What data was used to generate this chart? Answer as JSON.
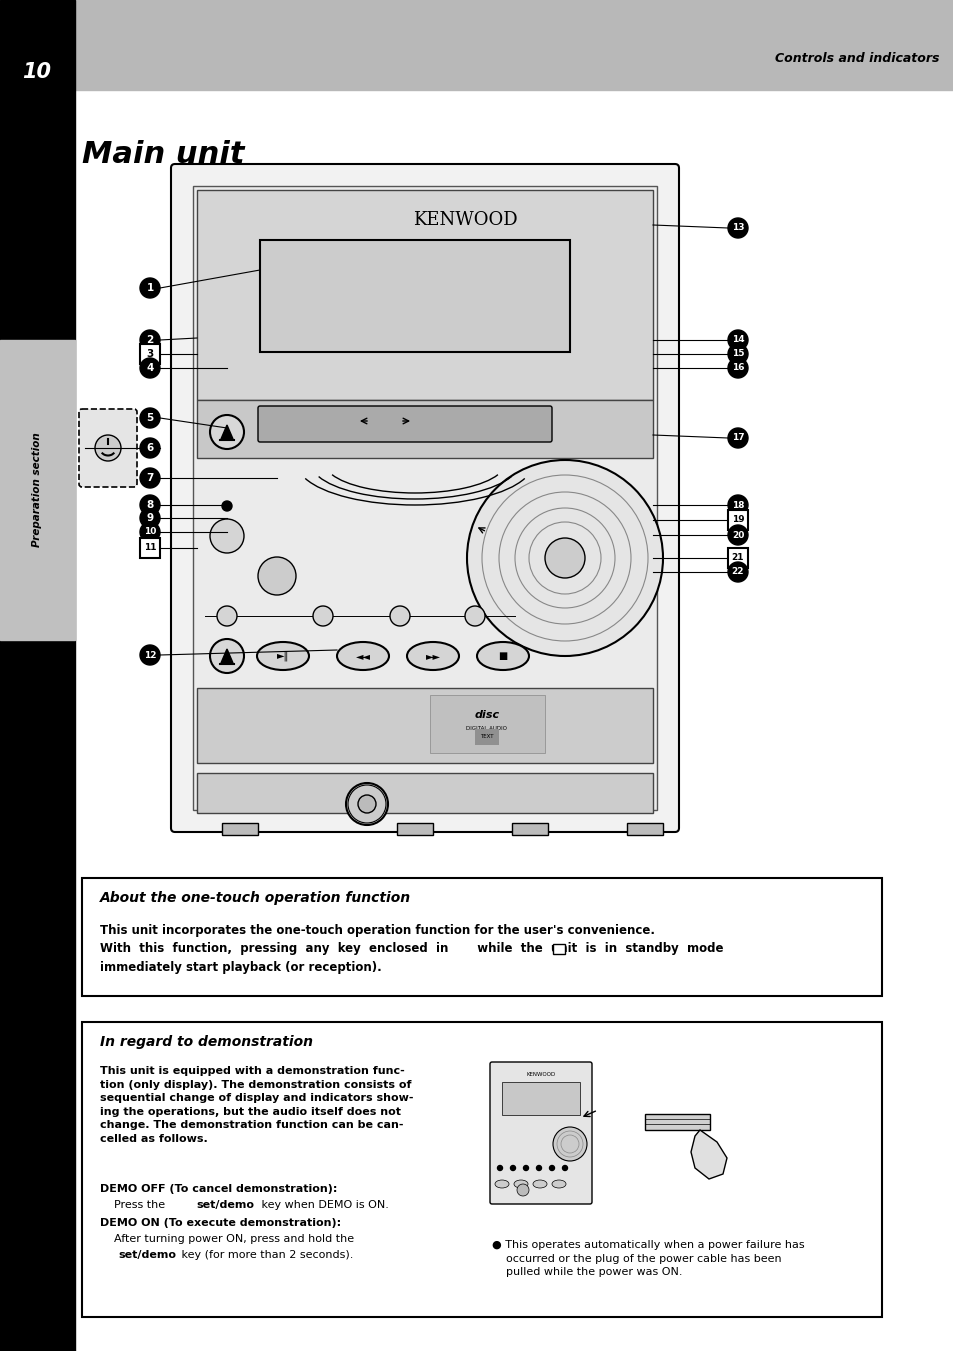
{
  "page_number": "10",
  "header_text": "Controls and indicators",
  "title": "Main unit",
  "bg_color": "#ffffff",
  "header_bg": "#b8b8b8",
  "sidebar_text": "Preparation section",
  "about_title": "About the one-touch operation function",
  "about_body_line1": "This unit incorporates the one-touch operation function for the user's convenience.",
  "about_body_line2": "With  this  function,  pressing  any  key  enclosed  in       while  the  unit  is  in  standby  mode",
  "about_body_line3": "immediately start playback (or reception).",
  "demo_title": "In regard to demonstration",
  "demo_body": "This unit is equipped with a demonstration func-\ntion (only display). The demonstration consists of\nsequential change of display and indicators show-\ning the operations, but the audio itself does not\nchange. The demonstration function can be can-\ncelled as follows.",
  "demo_off_title": "DEMO OFF (To cancel demonstration):",
  "demo_off_body1": "    Press the ",
  "demo_off_bold": "set/demo",
  "demo_off_body2": " key when DEMO is ON.",
  "demo_on_title": "DEMO ON (To execute demonstration):",
  "demo_on_body1": "    After turning power ON, press and hold the",
  "demo_on_bold": "set/demo",
  "demo_on_body2": " key (for more than 2 seconds).",
  "demo_bullet": "● This operates automatically when a power failure has\n    occurred or the plug of the power cable has been\n    pulled while the power was ON.",
  "kenwood_label": "KENWOOD"
}
